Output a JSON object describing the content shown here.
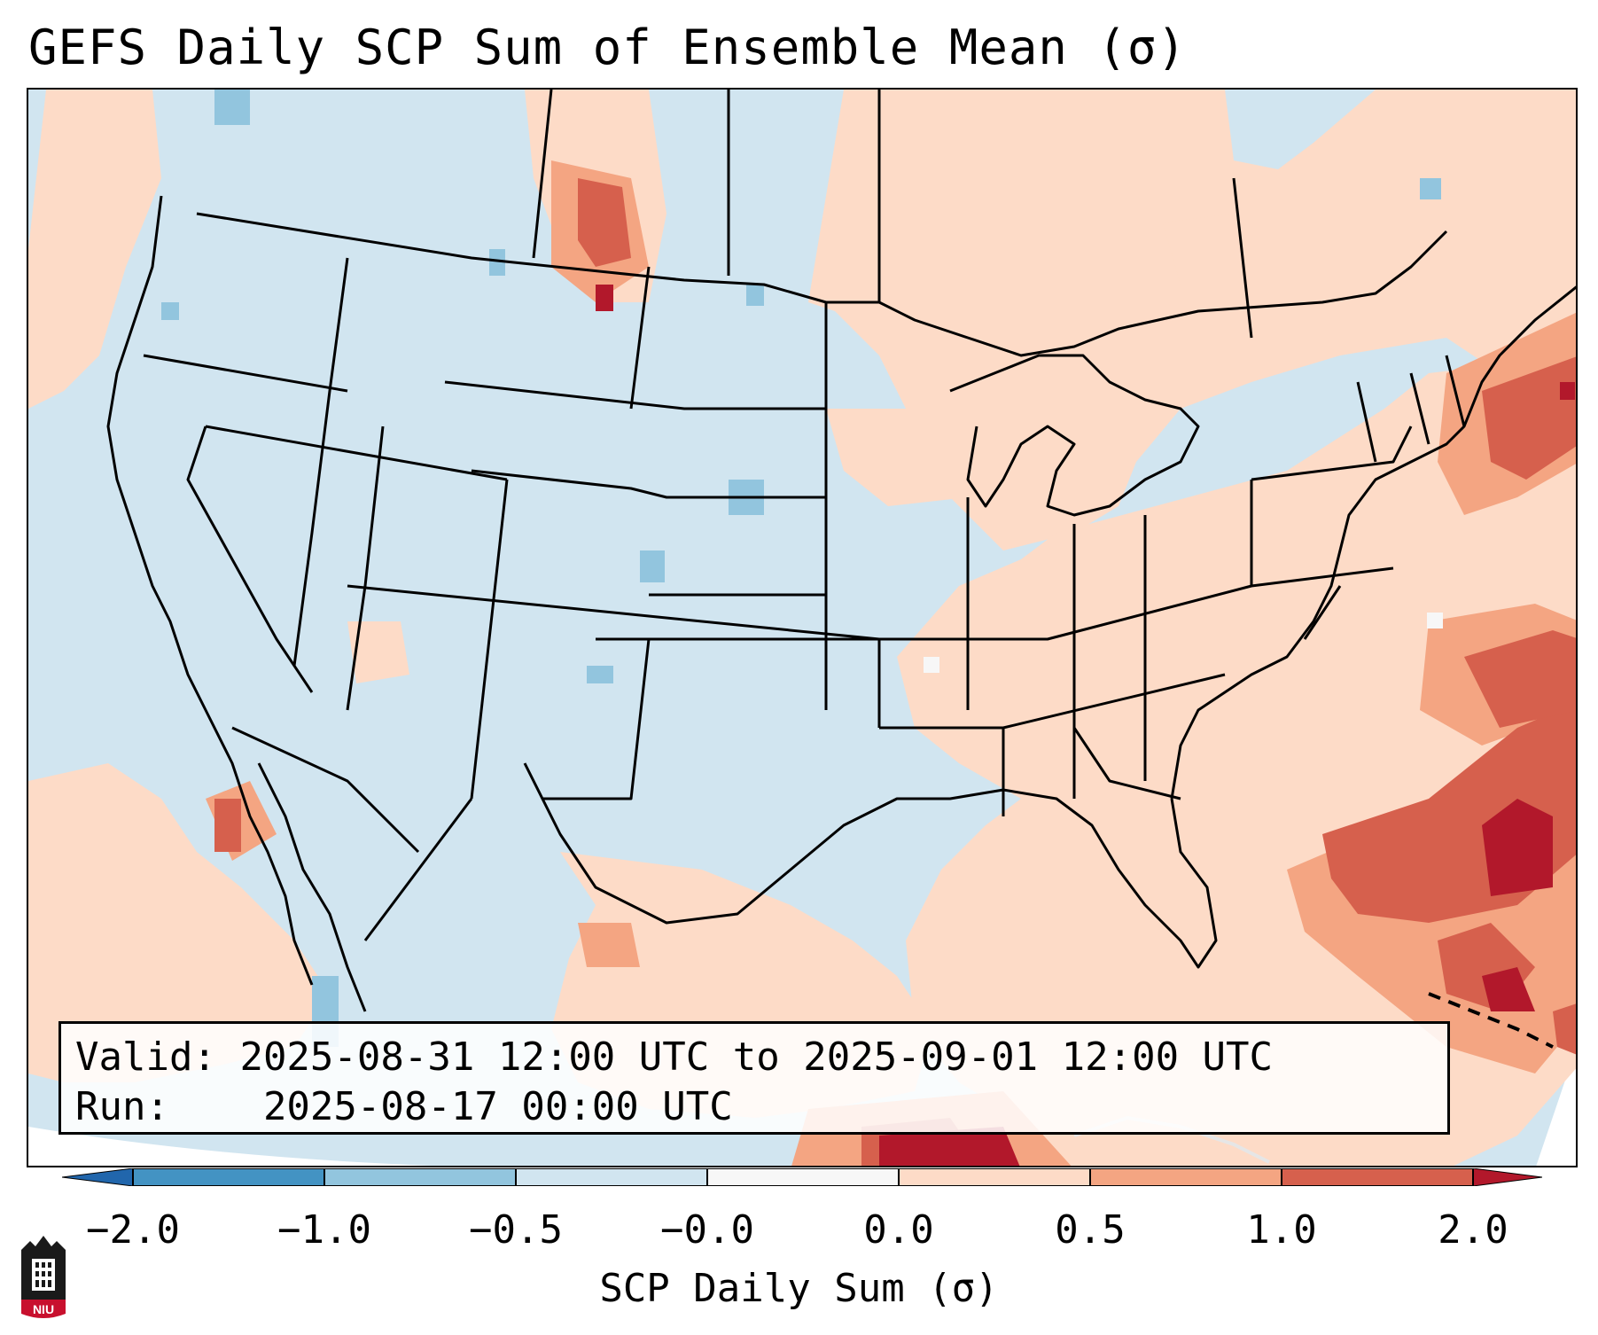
{
  "title": "GEFS Daily SCP Sum of Ensemble Mean (σ)",
  "info": {
    "valid_label": "Valid:",
    "valid_value": "2025-08-31 12:00 UTC to 2025-09-01 12:00 UTC",
    "run_label": "Run:",
    "run_value": "2025-08-17 00:00 UTC"
  },
  "colorbar": {
    "label": "SCP Daily Sum (σ)",
    "ticks": [
      "−2.0",
      "−1.0",
      "−0.5",
      "−0.0",
      "0.0",
      "0.5",
      "1.0",
      "2.0"
    ],
    "colors": {
      "below_min": "#2166ac",
      "lt_m1": "#4393c3",
      "m1_m05": "#92c5de",
      "m05_0": "#d1e5f0",
      "zero": "#f7f7f7",
      "p0_05": "#fddbc7",
      "p05_1": "#f4a582",
      "p1_2": "#d6604d",
      "above_max": "#b2182b"
    }
  },
  "logo": {
    "text": "NIU",
    "color": "#c8102e"
  },
  "map": {
    "background": "#d1e5f0",
    "outside": "#ffffff",
    "line_color": "#000000"
  }
}
